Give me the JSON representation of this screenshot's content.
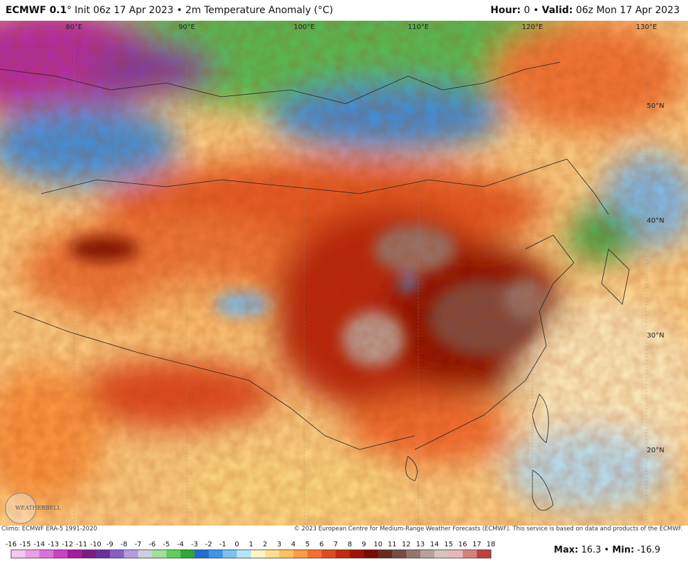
{
  "header": {
    "model": "ECMWF 0.1",
    "description": "° Init 06z 17 Apr 2023 • 2m Temperature Anomaly (°C)",
    "hour_label": "Hour:",
    "hour": "0",
    "separator": "•",
    "valid_label": "Valid:",
    "valid": "06z Mon 17 Apr 2023"
  },
  "map": {
    "lon_labels": [
      "80°E",
      "90°E",
      "100°E",
      "110°E",
      "120°E",
      "130°E"
    ],
    "lat_labels": [
      "50°N",
      "40°N",
      "30°N",
      "20°N"
    ],
    "logo": "WEATHERBELL"
  },
  "footer": {
    "climo": "Climo: ECMWF ERA-5 1991-2020",
    "copyright": "© 2023 European Centre for Medium-Range Weather Forecasts (ECMWF). This service is based on data and products of the ECMWF."
  },
  "legend": {
    "labels": [
      -16,
      -15,
      -14,
      -13,
      -12,
      -11,
      -10,
      -9,
      -8,
      -7,
      -6,
      -5,
      -4,
      -3,
      -2,
      -1,
      0,
      1,
      2,
      3,
      4,
      5,
      6,
      7,
      8,
      9,
      10,
      11,
      12,
      13,
      14,
      15,
      16,
      17,
      18
    ],
    "colors": [
      "#f7c6f1",
      "#ee9ee8",
      "#e070dc",
      "#cc3fc6",
      "#a61aa0",
      "#7d1a86",
      "#6b2fa0",
      "#8a5cc6",
      "#b49be0",
      "#cfcfe0",
      "#9fe09a",
      "#5fcf5a",
      "#2ea836",
      "#1f6fd1",
      "#3c95e8",
      "#7cc0f4",
      "#b7e4fb",
      "#fff3c8",
      "#ffe08a",
      "#ffc060",
      "#ff9a45",
      "#f57030",
      "#e04a20",
      "#c52a10",
      "#a01405",
      "#7a0a02",
      "#6a2a22",
      "#7a4a44",
      "#957570",
      "#b8a09c",
      "#d6c4c2",
      "#e8b8b8",
      "#d88080",
      "#c04040"
    ]
  },
  "stats": {
    "max_label": "Max:",
    "max": 16.3,
    "min_label": "Min:",
    "min": -16.9
  }
}
